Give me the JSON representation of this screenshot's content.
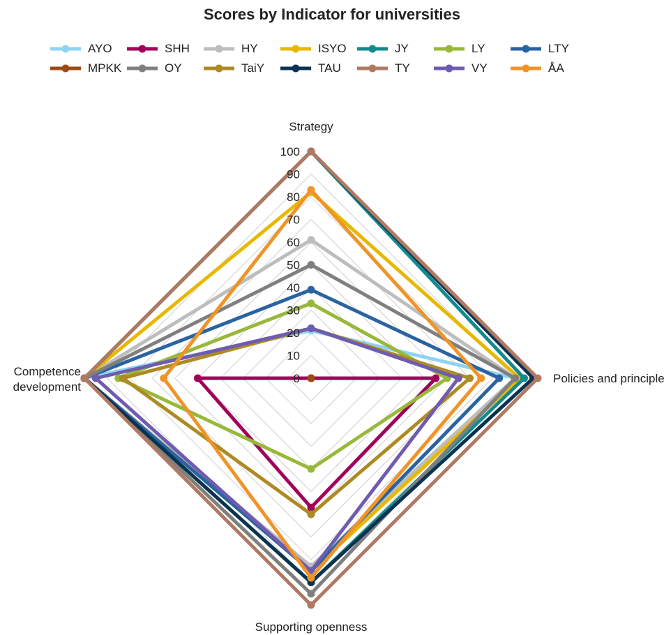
{
  "chart_data": {
    "type": "radar",
    "title": "Scores by Indicator for universities",
    "axes": [
      "Strategy",
      "Policies and principles",
      "Supporting openness",
      "Competence development"
    ],
    "axis_label_lines": [
      [
        "Strategy"
      ],
      [
        "Policies and principles"
      ],
      [
        "Supporting openness"
      ],
      [
        "Competence",
        "development"
      ]
    ],
    "ticks": [
      0,
      10,
      20,
      30,
      40,
      50,
      60,
      70,
      80,
      90,
      100
    ],
    "range": [
      0,
      100
    ],
    "grid": true,
    "legend_position": "top",
    "series": [
      {
        "name": "AYO",
        "color": "#8fd3f2",
        "values": [
          21,
          90,
          85,
          100
        ]
      },
      {
        "name": "SHH",
        "color": "#a0005a",
        "values": [
          0,
          55,
          57,
          50
        ]
      },
      {
        "name": "HY",
        "color": "#bdbdbd",
        "values": [
          61,
          90,
          83,
          100
        ]
      },
      {
        "name": "ISYO",
        "color": "#e8b800",
        "values": [
          82,
          92,
          85,
          100
        ]
      },
      {
        "name": "JY",
        "color": "#138a8e",
        "values": [
          100,
          94,
          90,
          100
        ]
      },
      {
        "name": "LY",
        "color": "#98b83a",
        "values": [
          33,
          60,
          40,
          85
        ]
      },
      {
        "name": "LTY",
        "color": "#2a63a1",
        "values": [
          39,
          83,
          85,
          100
        ]
      },
      {
        "name": "MPKK",
        "color": "#9c4a16",
        "values": [
          0,
          0,
          0,
          0
        ]
      },
      {
        "name": "OY",
        "color": "#7f7f7f",
        "values": [
          50,
          90,
          95,
          100
        ]
      },
      {
        "name": "TaiY",
        "color": "#ad8a22",
        "values": [
          22,
          70,
          60,
          83
        ]
      },
      {
        "name": "TAU",
        "color": "#0b3350",
        "values": [
          100,
          98,
          90,
          100
        ]
      },
      {
        "name": "TY",
        "color": "#b07a62",
        "values": [
          100,
          100,
          100,
          100
        ]
      },
      {
        "name": "VY",
        "color": "#6f5bb0",
        "values": [
          22,
          65,
          85,
          95
        ]
      },
      {
        "name": "ÅA",
        "color": "#ef9429",
        "values": [
          83,
          75,
          88,
          65
        ]
      }
    ]
  }
}
